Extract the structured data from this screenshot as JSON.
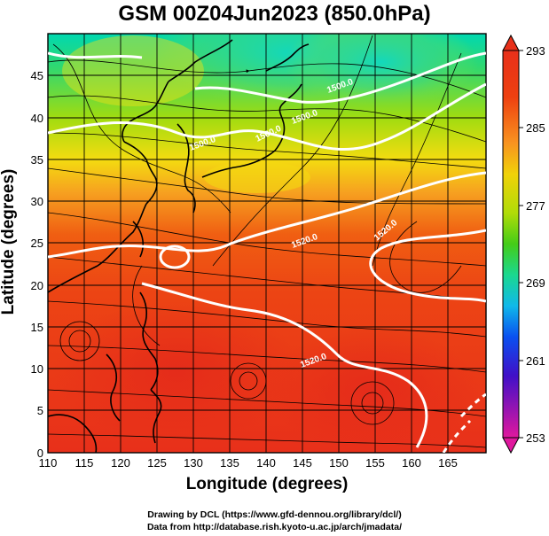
{
  "title": "GSM 00Z04Jun2023 (850.0hPa)",
  "xlabel": "Longitude (degrees)",
  "ylabel": "Latitude  (degrees)",
  "credits": [
    "Drawing by DCL (https://www.gfd-dennou.org/library/dcl/)",
    "Data from http://database.rish.kyoto-u.ac.jp/arch/jmadata/"
  ],
  "map": {
    "lon_range": [
      110,
      170
    ],
    "lat_range": [
      0,
      50
    ],
    "x_ticks": [
      "110",
      "115",
      "120",
      "125",
      "130",
      "135",
      "140",
      "145",
      "150",
      "155",
      "160",
      "165"
    ],
    "y_ticks": [
      "0",
      "5",
      "10",
      "15",
      "20",
      "25",
      "30",
      "35",
      "40",
      "45"
    ],
    "contour_labels": [
      "1500.0",
      "1500.0",
      "1500.0",
      "1500.0",
      "1520.0",
      "1520.0",
      "1520.0"
    ]
  },
  "colorbar": {
    "ticks": [
      "293",
      "285",
      "277",
      "269",
      "261",
      "253"
    ],
    "min": 253,
    "max": 293,
    "colors": [
      "#e0189e",
      "#4010c8",
      "#0a50f0",
      "#10b8ea",
      "#1ad890",
      "#44cc18",
      "#b0dc08",
      "#f0d208",
      "#f89420",
      "#ee4010",
      "#e8301a"
    ]
  }
}
